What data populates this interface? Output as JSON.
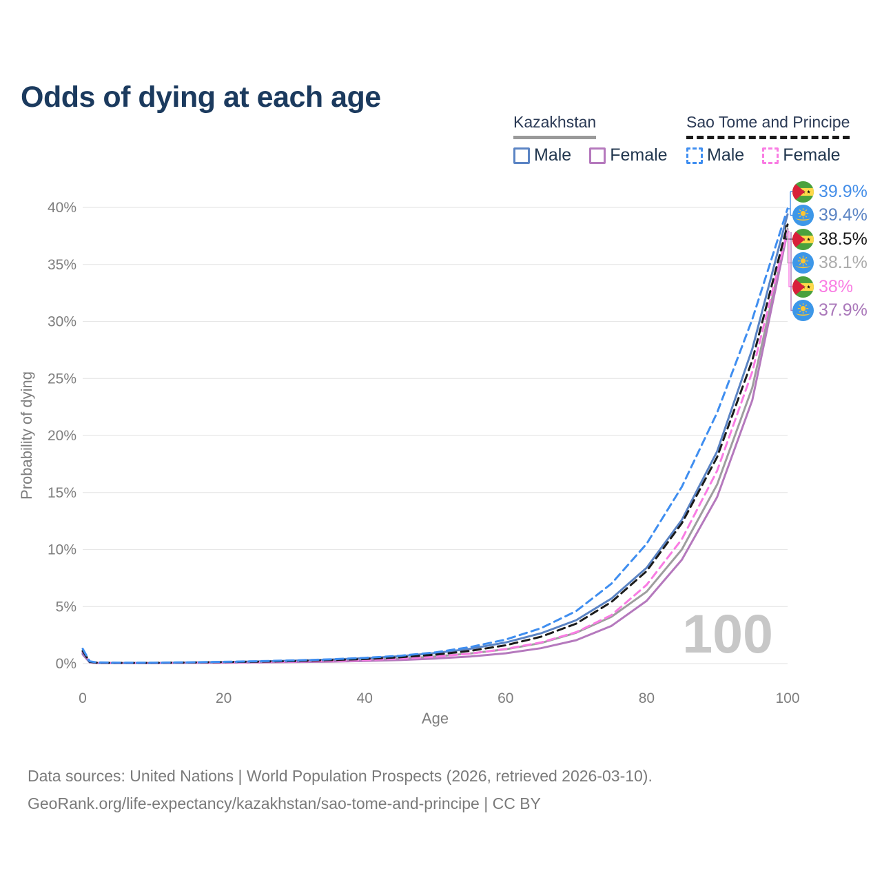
{
  "title": "Odds of dying at each age",
  "legend": {
    "kazakhstan": {
      "label": "Kazakhstan",
      "male": "Male",
      "female": "Female"
    },
    "sao_tome": {
      "label": "Sao Tome and Principe",
      "male": "Male",
      "female": "Female"
    }
  },
  "watermark": "100",
  "icons": {
    "sao_tome_flag": "circular flag of Sao Tome and Principe",
    "kazakhstan_flag": "circular flag of Kazakhstan"
  },
  "colors": {
    "title": "#1b3a5e",
    "axis_text": "#7e7e7e",
    "gridline": "#e7e7e7",
    "watermark": "#c7c7c7",
    "kazakhstan_underline": "#9a9a9a",
    "sao_tome_underline": "#1a1a1a"
  },
  "end_labels": [
    {
      "country": "sao-tome-and-principe",
      "value": "39.9%",
      "color": "#448ee8"
    },
    {
      "country": "kazakhstan",
      "value": "39.4%",
      "color": "#5b84c4"
    },
    {
      "country": "sao-tome-and-principe",
      "value": "38.5%",
      "color": "#1b1b1b"
    },
    {
      "country": "kazakhstan",
      "value": "38.1%",
      "color": "#ababab"
    },
    {
      "country": "sao-tome-and-principe",
      "value": "38%",
      "color": "#f97ce3"
    },
    {
      "country": "kazakhstan",
      "value": "37.9%",
      "color": "#aa78ba"
    }
  ],
  "footer": {
    "line1": "Data sources: United Nations | World Population Prospects (2026, retrieved 2026-03-10).",
    "line2": "GeoRank.org/life-expectancy/kazakhstan/sao-tome-and-principe | CC BY"
  },
  "chart_data": {
    "type": "line",
    "title": "Odds of dying at each age",
    "xlabel": "Age",
    "ylabel": "Probability of dying",
    "xlim": [
      0,
      100
    ],
    "ylim_percent": [
      0,
      40
    ],
    "grid": true,
    "legend_position": "top-right",
    "xtick_values": [
      0,
      20,
      40,
      60,
      80,
      100
    ],
    "xtick_labels": [
      "0",
      "20",
      "40",
      "60",
      "80",
      "100"
    ],
    "ytick_values": [
      0,
      5,
      10,
      15,
      20,
      25,
      30,
      35,
      40
    ],
    "ytick_labels": [
      "0%",
      "5%",
      "10%",
      "15%",
      "20%",
      "25%",
      "30%",
      "35%",
      "40%"
    ],
    "x": [
      0,
      1,
      2,
      5,
      10,
      15,
      20,
      25,
      30,
      35,
      40,
      45,
      50,
      55,
      60,
      65,
      70,
      75,
      80,
      85,
      90,
      95,
      100
    ],
    "series": [
      {
        "id": "kazakhstan-male",
        "country": "Kazakhstan",
        "group": "Male",
        "color": "#5b84c4",
        "dashed": false,
        "z": 3,
        "end_label": "39.4%",
        "values": [
          0.9,
          0.12,
          0.06,
          0.05,
          0.05,
          0.09,
          0.14,
          0.19,
          0.26,
          0.35,
          0.47,
          0.64,
          0.92,
          1.3,
          1.85,
          2.65,
          3.8,
          5.7,
          8.4,
          12.6,
          18.6,
          27.6,
          39.4
        ]
      },
      {
        "id": "kazakhstan-female",
        "country": "Kazakhstan",
        "group": "Female",
        "color": "#b579bd",
        "dashed": false,
        "z": 2,
        "end_label": "37.9%",
        "values": [
          0.8,
          0.1,
          0.05,
          0.04,
          0.04,
          0.06,
          0.08,
          0.1,
          0.13,
          0.17,
          0.23,
          0.31,
          0.44,
          0.62,
          0.9,
          1.35,
          2.05,
          3.3,
          5.5,
          9.1,
          14.6,
          23.1,
          37.9
        ]
      },
      {
        "id": "kazakhstan-both-sexes",
        "country": "Kazakhstan",
        "group": "Both sexes",
        "color": "#9e9e9e",
        "dashed": false,
        "z": 1,
        "end_label": "38.1%",
        "values": [
          0.85,
          0.11,
          0.05,
          0.04,
          0.04,
          0.07,
          0.1,
          0.14,
          0.18,
          0.24,
          0.32,
          0.44,
          0.62,
          0.88,
          1.25,
          1.8,
          2.7,
          4.1,
          6.3,
          10.0,
          15.7,
          24.2,
          38.1
        ]
      },
      {
        "id": "sao-tome-and-principe-male",
        "country": "Sao Tome and Principe",
        "group": "Male",
        "color": "#3f8ef0",
        "dashed": true,
        "z": 6,
        "end_label": "39.9%",
        "values": [
          1.3,
          0.2,
          0.1,
          0.07,
          0.07,
          0.11,
          0.16,
          0.21,
          0.28,
          0.37,
          0.5,
          0.68,
          0.98,
          1.45,
          2.1,
          3.1,
          4.6,
          7.0,
          10.5,
          15.5,
          22.0,
          30.2,
          39.9
        ]
      },
      {
        "id": "sao-tome-and-principe-female",
        "country": "Sao Tome and Principe",
        "group": "Female",
        "color": "#f97ce3",
        "dashed": true,
        "z": 4,
        "end_label": "38%",
        "values": [
          1.0,
          0.14,
          0.07,
          0.05,
          0.05,
          0.07,
          0.1,
          0.13,
          0.17,
          0.23,
          0.31,
          0.43,
          0.6,
          0.87,
          1.28,
          1.85,
          2.75,
          4.25,
          6.9,
          10.9,
          16.9,
          25.6,
          38.0
        ]
      },
      {
        "id": "sao-tome-and-principe-both-sexes",
        "country": "Sao Tome and Principe",
        "group": "Both sexes",
        "color": "#1b1b1b",
        "dashed": true,
        "z": 5,
        "end_label": "38.5%",
        "values": [
          1.1,
          0.16,
          0.08,
          0.06,
          0.06,
          0.09,
          0.13,
          0.17,
          0.22,
          0.3,
          0.4,
          0.55,
          0.78,
          1.12,
          1.6,
          2.35,
          3.5,
          5.4,
          8.1,
          12.3,
          18.1,
          26.6,
          38.5
        ]
      }
    ]
  }
}
